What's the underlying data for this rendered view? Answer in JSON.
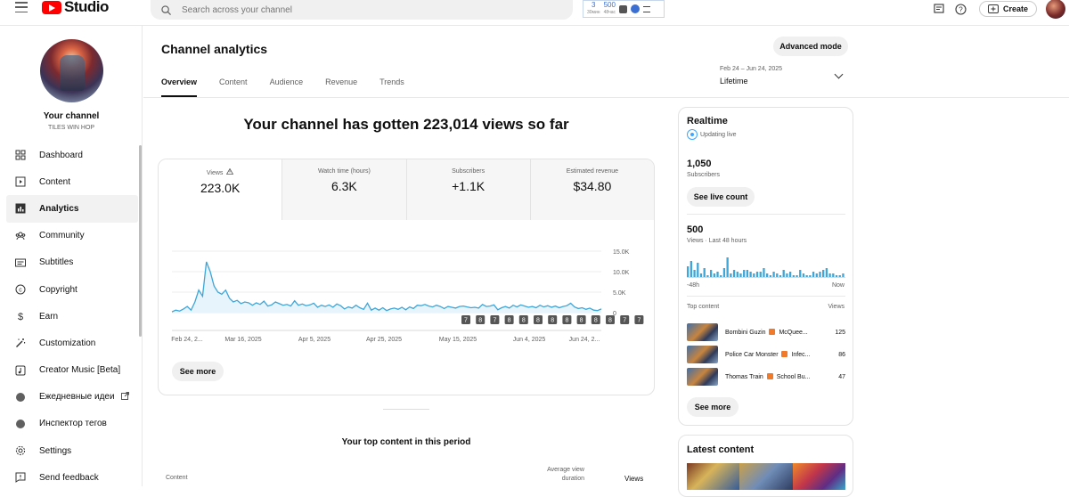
{
  "header": {
    "logo_text": "Studio",
    "search_placeholder": "Search across your channel",
    "ext_stat1": "3",
    "ext_stat1_sub": "30мин",
    "ext_stat2": "500",
    "ext_stat2_sub": "48час",
    "create_label": "Create"
  },
  "sidebar": {
    "channel_label": "Your channel",
    "channel_name": "TILES WIN HOP",
    "items": [
      {
        "label": "Dashboard",
        "icon": "dashboard-icon"
      },
      {
        "label": "Content",
        "icon": "content-icon"
      },
      {
        "label": "Analytics",
        "icon": "analytics-icon",
        "active": true
      },
      {
        "label": "Community",
        "icon": "community-icon"
      },
      {
        "label": "Subtitles",
        "icon": "subtitles-icon"
      },
      {
        "label": "Copyright",
        "icon": "copyright-icon"
      },
      {
        "label": "Earn",
        "icon": "earn-icon"
      },
      {
        "label": "Customization",
        "icon": "customization-icon"
      },
      {
        "label": "Creator Music [Beta]",
        "icon": "creator-music-icon"
      },
      {
        "label": "Ежедневные идеи",
        "icon": "daily-ideas-icon",
        "external": true
      },
      {
        "label": "Инспектор тегов",
        "icon": "tag-inspector-icon"
      },
      {
        "label": "Settings",
        "icon": "settings-icon"
      },
      {
        "label": "Send feedback",
        "icon": "feedback-icon"
      }
    ]
  },
  "main": {
    "title": "Channel analytics",
    "advanced_mode_label": "Advanced mode",
    "tabs": [
      "Overview",
      "Content",
      "Audience",
      "Revenue",
      "Trends"
    ],
    "date_range": "Feb 24 – Jun 24, 2025",
    "date_value": "Lifetime",
    "headline": "Your channel has gotten 223,014 views so far",
    "metrics": [
      {
        "label": "Views",
        "value": "223.0K"
      },
      {
        "label": "Watch time (hours)",
        "value": "6.3K"
      },
      {
        "label": "Subscribers",
        "value": "+1.1K"
      },
      {
        "label": "Estimated revenue",
        "value": "$34.80"
      }
    ],
    "see_more_label": "See more",
    "top_content_title": "Your top content in this period",
    "table_headers": {
      "content": "Content",
      "avg_view_duration": "Average view duration",
      "views": "Views"
    }
  },
  "chart_data": {
    "type": "line",
    "x_ticks": [
      "Feb 24, 2...",
      "Mar 16, 2025",
      "Apr 5, 2025",
      "Apr 25, 2025",
      "May 15, 2025",
      "Jun 4, 2025",
      "Jun 24, 2..."
    ],
    "y_ticks": [
      "15.0K",
      "10.0K",
      "5.0K",
      "0"
    ],
    "ylim": [
      0,
      15000
    ],
    "series": [
      {
        "values": [
          200,
          600,
          400,
          900,
          1500,
          600,
          2600,
          5500,
          4000,
          12400,
          10000,
          6500,
          5000,
          4500,
          5500,
          3500,
          2600,
          3000,
          2200,
          2600,
          2400,
          1800,
          2400,
          2000,
          2800,
          1600,
          1900,
          2600,
          2200,
          1800,
          2000,
          1600,
          2900,
          1800,
          2100,
          1700,
          1900,
          2300,
          1300,
          1800,
          1500,
          1900,
          1300,
          2100,
          1700,
          900,
          1400,
          1100,
          1800,
          1200,
          800,
          2300,
          600,
          1100,
          600,
          1200,
          500,
          900,
          1100,
          800,
          1300,
          700,
          1400,
          1000,
          1800,
          1700,
          2000,
          1600,
          1400,
          1800,
          1500,
          1000,
          1500,
          1300,
          1100,
          1500,
          1600,
          1400,
          1200,
          1300,
          1100,
          2000,
          1500,
          1600,
          1900,
          700,
          1200,
          1500,
          1100,
          1800,
          1400,
          1900,
          1600,
          1300,
          1500,
          1200,
          1800,
          1400,
          1700,
          1300,
          1600,
          1200,
          1500,
          1700,
          2300,
          1400,
          1000,
          1200,
          800,
          1100,
          600,
          500,
          900
        ]
      }
    ],
    "event_markers": [
      "7",
      "8",
      "7",
      "8",
      "8",
      "8",
      "8",
      "8",
      "8",
      "8",
      "8",
      "7",
      "7"
    ]
  },
  "realtime": {
    "title": "Realtime",
    "status": "Updating live",
    "subscribers": "1,050",
    "subscribers_label": "Subscribers",
    "see_live_label": "See live count",
    "views": "500",
    "views_label": "Views · Last 48 hours",
    "axis_start": "-48h",
    "axis_end": "Now",
    "bars": [
      6,
      9,
      4,
      8,
      2,
      5,
      1,
      4,
      2,
      3,
      1,
      5,
      11,
      2,
      4,
      3,
      2,
      4,
      4,
      3,
      2,
      3,
      3,
      5,
      2,
      1,
      3,
      2,
      1,
      4,
      2,
      3,
      1,
      1,
      4,
      2,
      1,
      1,
      3,
      2,
      3,
      4,
      5,
      2,
      2,
      1,
      1,
      2
    ],
    "top_content_label": "Top content",
    "views_col_label": "Views",
    "top_content": [
      {
        "title": "Bombini Guzin",
        "title2": "McQuee...",
        "views": "125"
      },
      {
        "title": "Police Car Monster",
        "title2": "Infec...",
        "views": "86"
      },
      {
        "title": "Thomas Train",
        "title2": "School Bu...",
        "views": "47"
      }
    ],
    "see_more_label": "See more"
  },
  "latest": {
    "title": "Latest content"
  },
  "colors": {
    "brand": "#ff0000",
    "chart_line": "#3ea6d8",
    "chart_fill": "#e8f4fb",
    "accent": "#3ea6ff"
  }
}
